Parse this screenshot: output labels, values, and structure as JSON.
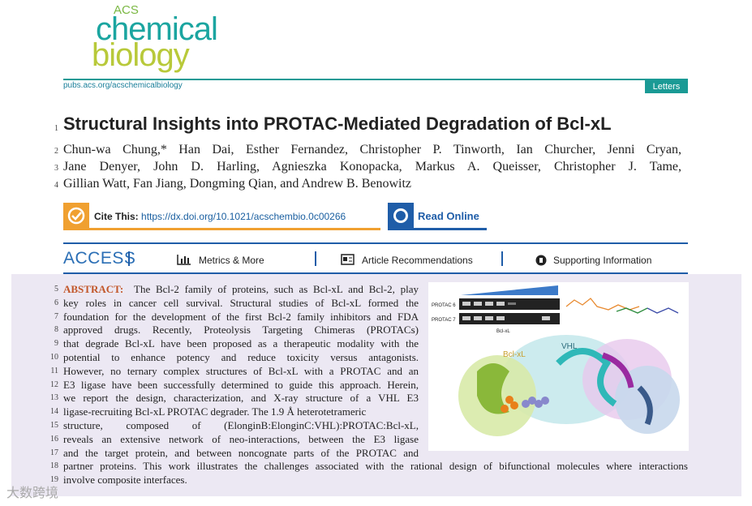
{
  "header": {
    "logo": {
      "top": "ACS",
      "middle": "chemical",
      "bottom": "biology"
    },
    "url": "pubs.acs.org/acschemicalbiology",
    "badge": "Letters"
  },
  "title": {
    "n": 1,
    "text": "Structural Insights into PROTAC-Mediated Degradation of Bcl-xL"
  },
  "authors": [
    {
      "n": 2,
      "text": "Chun-wa Chung,* Han Dai, Esther Fernandez, Christopher P. Tinworth, Ian Churcher, Jenni Cryan,"
    },
    {
      "n": 3,
      "text": "Jane Denyer, John D. Harling, Agnieszka Konopacka, Markus A. Queisser, Christopher J. Tame,"
    },
    {
      "n": 4,
      "text": "Gillian Watt, Fan Jiang, Dongming Qian, and Andrew B. Benowitz"
    }
  ],
  "cite": {
    "label": "Cite This:",
    "doi": "https://dx.doi.org/10.1021/acschembio.0c00266",
    "read_online": "Read Online"
  },
  "access": {
    "label": "ACCESS",
    "links": [
      "Metrics & More",
      "Article Recommendations",
      "Supporting Information"
    ]
  },
  "abstract": {
    "label": "ABSTRACT:",
    "lines": [
      {
        "n": 5,
        "text": "The Bcl-2 family of proteins, such as Bcl-xL and Bcl-2, play"
      },
      {
        "n": 6,
        "text": "key roles in cancer cell survival. Structural studies of Bcl-xL formed the"
      },
      {
        "n": 7,
        "text": "foundation for the development of the first Bcl-2 family inhibitors and FDA"
      },
      {
        "n": 8,
        "text": "approved drugs. Recently, Proteolysis Targeting Chimeras (PROTACs)"
      },
      {
        "n": 9,
        "text": "that degrade Bcl-xL have been proposed as a therapeutic modality with the"
      },
      {
        "n": 10,
        "text": "potential to enhance potency and reduce toxicity versus antagonists."
      },
      {
        "n": 11,
        "text": "However, no ternary complex structures of Bcl-xL with a PROTAC and an"
      },
      {
        "n": 12,
        "text": "E3 ligase have been successfully determined to guide this approach. Herein,"
      },
      {
        "n": 13,
        "text": "we report the design, characterization, and X-ray structure of a VHL E3"
      },
      {
        "n": 14,
        "text": "ligase-recruiting Bcl-xL PROTAC degrader. The 1.9 Å heterotetrameric"
      },
      {
        "n": 15,
        "text": "structure, composed of (ElonginB:ElonginC:VHL):PROTAC:Bcl-xL,"
      },
      {
        "n": 16,
        "text": "reveals an extensive network of neo-interactions, between the E3 ligase"
      },
      {
        "n": 17,
        "text": "and the target protein, and between noncognate parts of the PROTAC and"
      },
      {
        "n": 18,
        "text": "partner proteins. This work illustrates the challenges associated with the rational design of bifunctional molecules where interactions"
      },
      {
        "n": 19,
        "text": "involve composite interfaces."
      }
    ]
  },
  "figure": {
    "gel_labels": [
      "PROTAC 6",
      "PROTAC 7"
    ],
    "gel_axis": "Bcl-xL",
    "protein_labels": [
      "Bcl-xL",
      "VHL"
    ]
  },
  "watermark": "大数跨境"
}
